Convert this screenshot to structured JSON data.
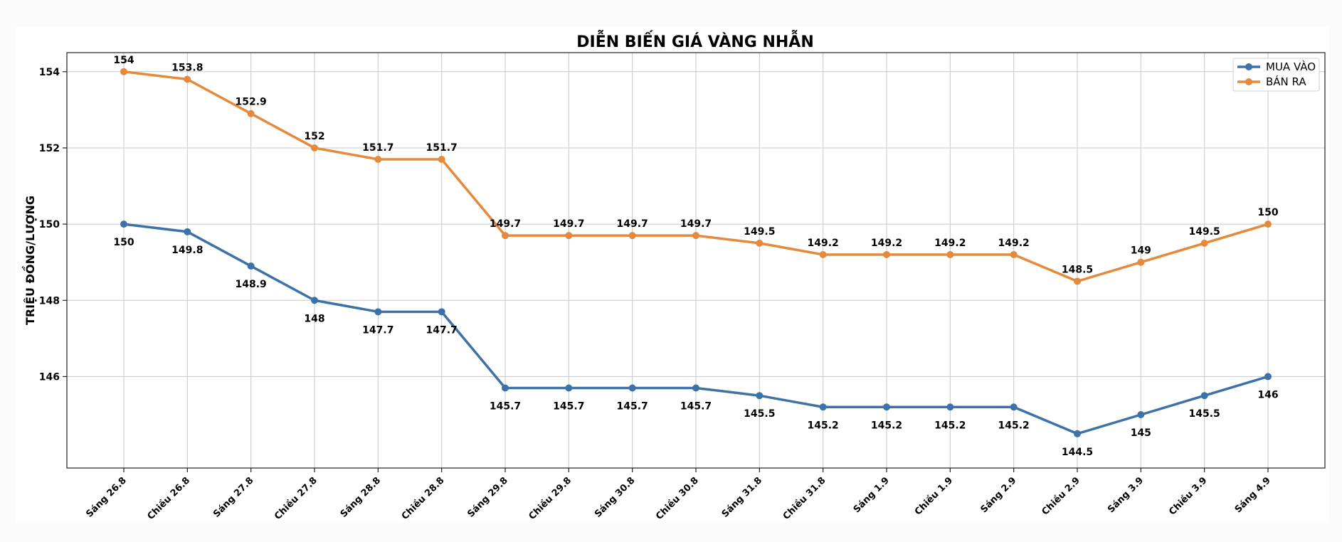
{
  "chart_data": {
    "type": "line",
    "title": "DIỄN BIẾN GIÁ VÀNG NHẪN",
    "xlabel": "",
    "ylabel": "TRIỆU ĐỒNG/LƯỢNG",
    "categories": [
      "Sáng 26.8",
      "Chiều 26.8",
      "Sáng 27.8",
      "Chiều 27.8",
      "Sáng 28.8",
      "Chiều 28.8",
      "Sáng 29.8",
      "Chiều 29.8",
      "Sáng 30.8",
      "Chiều 30.8",
      "Sáng 31.8",
      "Chiều 31.8",
      "Sáng 1.9",
      "Chiều 1.9",
      "Sáng 2.9",
      "Chiều 2.9",
      "Sáng 3.9",
      "Chiều 3.9",
      "Sáng 4.9"
    ],
    "series": [
      {
        "name": "MUA VÀO",
        "color": "#3d72a8",
        "label_position": "below",
        "values": [
          150,
          149.8,
          148.9,
          148,
          147.7,
          147.7,
          145.7,
          145.7,
          145.7,
          145.7,
          145.5,
          145.2,
          145.2,
          145.2,
          145.2,
          144.5,
          145,
          145.5,
          146
        ]
      },
      {
        "name": "BÁN RA",
        "color": "#e58a3c",
        "label_position": "above",
        "values": [
          154,
          153.8,
          152.9,
          152,
          151.7,
          151.7,
          149.7,
          149.7,
          149.7,
          149.7,
          149.5,
          149.2,
          149.2,
          149.2,
          149.2,
          148.5,
          149,
          149.5,
          150
        ]
      }
    ],
    "ylim": [
      143.6,
      154.5
    ],
    "yticks": [
      146,
      148,
      150,
      152,
      154
    ],
    "grid": true,
    "legend": "top-right"
  }
}
